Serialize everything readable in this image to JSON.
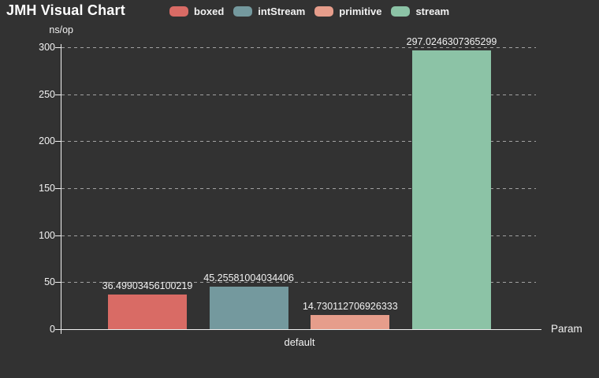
{
  "title": "JMH Visual Chart",
  "y_axis": {
    "unit_label": "ns/op",
    "ticks": [
      0,
      50,
      100,
      150,
      200,
      250,
      300
    ]
  },
  "x_axis": {
    "label": "Param",
    "category": "default"
  },
  "chart_data": {
    "type": "bar",
    "title": "JMH Visual Chart",
    "xlabel": "Param",
    "ylabel": "ns/op",
    "ylim": [
      0,
      300
    ],
    "grid": "horizontal-dashed",
    "legend_position": "top",
    "categories": [
      "default"
    ],
    "series": [
      {
        "name": "boxed",
        "values": [
          36.49903456100219
        ],
        "label": "36.49903456100219",
        "color": "#d96b65"
      },
      {
        "name": "intStream",
        "values": [
          45.25581004034406
        ],
        "label": "45.25581004034406",
        "color": "#74999e"
      },
      {
        "name": "primitive",
        "values": [
          14.730112706926333
        ],
        "label": "14.730112706926333",
        "color": "#e69d8b"
      },
      {
        "name": "stream",
        "values": [
          297.0246307365299
        ],
        "label": "297.0246307365299",
        "color": "#8cc3a6"
      }
    ]
  },
  "colors": {
    "background": "#323232",
    "axis": "#f0f0f0",
    "gridline": "rgba(255,255,255,0.55)",
    "text": "#f2f2f2",
    "title": "#ffffff"
  }
}
